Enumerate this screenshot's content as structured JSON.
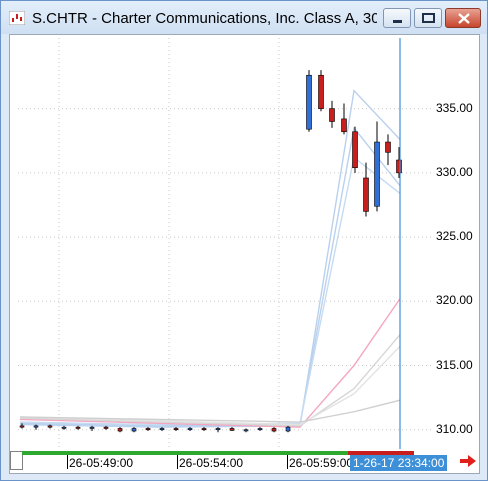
{
  "window": {
    "title": "S.CHTR - Charter Communications, Inc. Class A, 30 ..."
  },
  "icons": {
    "app": "chart-app-icon",
    "minimize": "minimize-icon",
    "maximize": "maximize-icon",
    "close": "close-icon",
    "scroll_right": "right-arrow-icon"
  },
  "colors": {
    "up_candle": "#2f6fd6",
    "down_candle": "#c81e1e",
    "crosshair": "#3d8fd8",
    "ma_light_blue": "#b9d1ee",
    "ma_pink": "#f4a6c0",
    "ma_gray": "#d6d6d6"
  },
  "chart_data": {
    "type": "candlestick",
    "ylim": [
      308.5,
      340.5
    ],
    "y_ticks": [
      "335.00",
      "330.00",
      "325.00",
      "320.00",
      "315.00",
      "310.00"
    ],
    "x_ticks": [
      "26-05:49:00",
      "26-05:54:00",
      "26-05:59:00"
    ],
    "cursor_time": "1-26-17 23:34:00",
    "grid": true,
    "low_flat_bars": [
      {
        "o": 310.3,
        "h": 310.5,
        "l": 310.1,
        "c": 310.2
      },
      {
        "o": 310.2,
        "h": 310.4,
        "l": 310.0,
        "c": 310.3
      },
      {
        "o": 310.3,
        "h": 310.4,
        "l": 310.1,
        "c": 310.2
      },
      {
        "o": 310.2,
        "h": 310.3,
        "l": 310.0,
        "c": 310.2
      },
      {
        "o": 310.2,
        "h": 310.3,
        "l": 310.0,
        "c": 310.1
      },
      {
        "o": 310.1,
        "h": 310.3,
        "l": 309.9,
        "c": 310.2
      },
      {
        "o": 310.2,
        "h": 310.3,
        "l": 310.0,
        "c": 310.1
      },
      {
        "o": 310.1,
        "h": 310.2,
        "l": 309.8,
        "c": 309.9
      },
      {
        "o": 309.9,
        "h": 310.2,
        "l": 309.8,
        "c": 310.1
      },
      {
        "o": 310.1,
        "h": 310.2,
        "l": 309.9,
        "c": 310.0
      },
      {
        "o": 310.0,
        "h": 310.2,
        "l": 309.9,
        "c": 310.1
      },
      {
        "o": 310.1,
        "h": 310.2,
        "l": 309.9,
        "c": 310.0
      },
      {
        "o": 310.0,
        "h": 310.2,
        "l": 309.9,
        "c": 310.1
      },
      {
        "o": 310.1,
        "h": 310.2,
        "l": 309.9,
        "c": 310.0
      },
      {
        "o": 310.0,
        "h": 310.2,
        "l": 309.8,
        "c": 310.1
      },
      {
        "o": 310.1,
        "h": 310.2,
        "l": 309.9,
        "c": 309.95
      },
      {
        "o": 309.95,
        "h": 310.1,
        "l": 309.8,
        "c": 310.0
      },
      {
        "o": 310.0,
        "h": 310.2,
        "l": 309.9,
        "c": 310.1
      },
      {
        "o": 310.1,
        "h": 310.2,
        "l": 309.8,
        "c": 309.9
      },
      {
        "o": 309.9,
        "h": 310.3,
        "l": 309.8,
        "c": 310.2
      }
    ],
    "high_bars": [
      {
        "o": 333.4,
        "h": 338.0,
        "l": 333.2,
        "c": 337.6
      },
      {
        "o": 337.6,
        "h": 338.0,
        "l": 334.8,
        "c": 335.0
      },
      {
        "o": 335.0,
        "h": 335.6,
        "l": 333.5,
        "c": 334.0
      },
      {
        "o": 334.2,
        "h": 335.4,
        "l": 333.0,
        "c": 333.2
      },
      {
        "o": 333.2,
        "h": 333.6,
        "l": 330.0,
        "c": 330.4
      },
      {
        "o": 329.6,
        "h": 330.8,
        "l": 326.6,
        "c": 327.0
      },
      {
        "o": 327.4,
        "h": 334.0,
        "l": 327.0,
        "c": 332.4
      },
      {
        "o": 332.4,
        "h": 333.0,
        "l": 330.6,
        "c": 331.6
      },
      {
        "o": 331.0,
        "h": 332.0,
        "l": 329.6,
        "c": 330.0
      }
    ],
    "moving_averages": [
      {
        "color": "#b9d1ee",
        "values": [
          310.4,
          310.2,
          310.3,
          336.4,
          332.6
        ]
      },
      {
        "color": "#b9d1ee",
        "values": [
          310.5,
          310.3,
          310.4,
          333.5,
          329.0
        ]
      },
      {
        "color": "#c5dbf2",
        "values": [
          310.6,
          310.4,
          310.5,
          331.2,
          328.4
        ]
      },
      {
        "color": "#f4a6c0",
        "values": [
          310.8,
          310.5,
          310.2,
          315.0,
          320.2
        ]
      },
      {
        "color": "#d6d6d6",
        "values": [
          310.9,
          310.6,
          310.3,
          313.2,
          317.4
        ]
      },
      {
        "color": "#e3e3e3",
        "values": [
          311.0,
          310.7,
          310.4,
          312.8,
          316.5
        ]
      },
      {
        "color": "#cfcfcf",
        "values": [
          311.0,
          310.8,
          310.6,
          311.4,
          312.3
        ]
      }
    ]
  }
}
